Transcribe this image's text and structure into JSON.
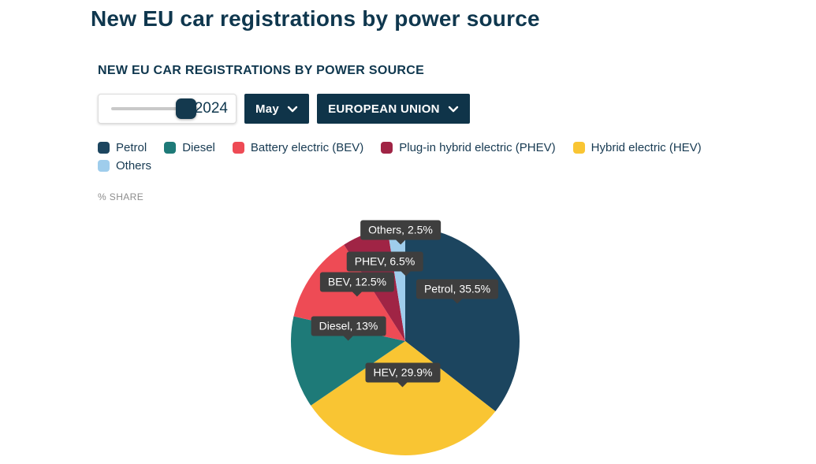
{
  "page": {
    "title": "New EU car registrations by power source"
  },
  "panel": {
    "heading": "NEW EU CAR REGISTRATIONS BY POWER SOURCE",
    "controls": {
      "year_slider": {
        "value": "2024"
      },
      "month_dropdown": {
        "label": "May"
      },
      "region_dropdown": {
        "label": "EUROPEAN UNION"
      }
    },
    "axis_label": "% SHARE"
  },
  "legend": {
    "items": [
      {
        "label": "Petrol",
        "color": "#1c455f"
      },
      {
        "label": "Diesel",
        "color": "#1e7a78"
      },
      {
        "label": "Battery electric (BEV)",
        "color": "#ee4b55"
      },
      {
        "label": "Plug-in hybrid electric (PHEV)",
        "color": "#a02445"
      },
      {
        "label": "Hybrid electric (HEV)",
        "color": "#f9c533"
      },
      {
        "label": "Others",
        "color": "#9fcdec"
      }
    ]
  },
  "chart_data": {
    "type": "pie",
    "title": "NEW EU CAR REGISTRATIONS BY POWER SOURCE",
    "unit": "% SHARE",
    "period": "May 2024",
    "region": "EUROPEAN UNION",
    "start_angle_deg": 0,
    "direction": "clockwise",
    "slices": [
      {
        "name": "Petrol",
        "short": "Petrol",
        "value": 35.5,
        "color": "#1c455f",
        "label": "Petrol, 35.5%"
      },
      {
        "name": "Hybrid electric (HEV)",
        "short": "HEV",
        "value": 29.9,
        "color": "#f9c533",
        "label": "HEV, 29.9%"
      },
      {
        "name": "Diesel",
        "short": "Diesel",
        "value": 13,
        "color": "#1e7a78",
        "label": "Diesel, 13%"
      },
      {
        "name": "Battery electric (BEV)",
        "short": "BEV",
        "value": 12.5,
        "color": "#ee4b55",
        "label": "BEV, 12.5%"
      },
      {
        "name": "Plug-in hybrid electric (PHEV)",
        "short": "PHEV",
        "value": 6.5,
        "color": "#a02445",
        "label": "PHEV, 6.5%"
      },
      {
        "name": "Others",
        "short": "Others",
        "value": 2.5,
        "color": "#9fcdec",
        "label": "Others, 2.5%"
      }
    ]
  }
}
